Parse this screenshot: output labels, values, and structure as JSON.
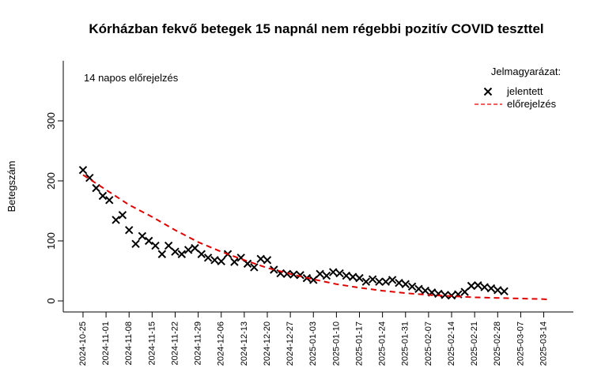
{
  "chart_data": {
    "type": "scatter-line",
    "title": "Kórházban fekvő betegek 15 napnál nem régebbi pozitív COVID teszttel",
    "annotation": "14 napos előrejelzés",
    "y_label": "Betegszám",
    "legend_title": "Jelmagyarázat:",
    "legend_position": "top-right",
    "xlim": [
      "2024-10-19",
      "2025-03-23"
    ],
    "ylim": [
      -18.4,
      400
    ],
    "yticks": [
      0,
      100,
      200,
      300
    ],
    "xticks": [
      "2024-10-25",
      "2024-11-01",
      "2024-11-08",
      "2024-11-15",
      "2024-11-22",
      "2024-11-29",
      "2024-12-06",
      "2024-12-13",
      "2024-12-20",
      "2024-12-27",
      "2025-01-03",
      "2025-01-10",
      "2025-01-17",
      "2025-01-24",
      "2025-01-31",
      "2025-02-07",
      "2025-02-14",
      "2025-02-21",
      "2025-02-28",
      "2025-03-07",
      "2025-03-14"
    ],
    "series": [
      {
        "name": "jelentett",
        "color": "#000000",
        "marker": "x",
        "x": [
          "2024-10-25",
          "2024-10-27",
          "2024-10-29",
          "2024-10-31",
          "2024-11-02",
          "2024-11-04",
          "2024-11-06",
          "2024-11-08",
          "2024-11-10",
          "2024-11-12",
          "2024-11-14",
          "2024-11-16",
          "2024-11-18",
          "2024-11-20",
          "2024-11-22",
          "2024-11-24",
          "2024-11-26",
          "2024-11-28",
          "2024-11-30",
          "2024-12-02",
          "2024-12-04",
          "2024-12-06",
          "2024-12-08",
          "2024-12-10",
          "2024-12-12",
          "2024-12-14",
          "2024-12-16",
          "2024-12-18",
          "2024-12-20",
          "2024-12-22",
          "2024-12-24",
          "2024-12-26",
          "2024-12-28",
          "2024-12-30",
          "2025-01-01",
          "2025-01-03",
          "2025-01-05",
          "2025-01-07",
          "2025-01-09",
          "2025-01-11",
          "2025-01-13",
          "2025-01-15",
          "2025-01-17",
          "2025-01-19",
          "2025-01-21",
          "2025-01-23",
          "2025-01-25",
          "2025-01-27",
          "2025-01-29",
          "2025-01-31",
          "2025-02-02",
          "2025-02-04",
          "2025-02-06",
          "2025-02-08",
          "2025-02-10",
          "2025-02-12",
          "2025-02-14",
          "2025-02-16",
          "2025-02-18",
          "2025-02-20",
          "2025-02-22",
          "2025-02-24",
          "2025-02-26",
          "2025-02-28",
          "2025-03-02"
        ],
        "values": [
          218,
          205,
          188,
          175,
          168,
          135,
          143,
          118,
          95,
          108,
          100,
          92,
          78,
          92,
          82,
          78,
          85,
          88,
          78,
          72,
          68,
          66,
          78,
          65,
          72,
          62,
          56,
          70,
          68,
          52,
          46,
          45,
          44,
          43,
          38,
          35,
          45,
          42,
          48,
          46,
          42,
          40,
          38,
          32,
          36,
          32,
          32,
          35,
          30,
          28,
          24,
          20,
          17,
          14,
          12,
          10,
          9,
          11,
          15,
          25,
          26,
          23,
          21,
          18,
          16
        ]
      },
      {
        "name": "előrejelzés",
        "color": "#e00000",
        "marker": "dashed-line",
        "x": [
          "2024-10-25",
          "2024-11-01",
          "2024-11-08",
          "2024-11-15",
          "2024-11-22",
          "2024-11-29",
          "2024-12-06",
          "2024-12-13",
          "2024-12-20",
          "2024-12-27",
          "2025-01-03",
          "2025-01-10",
          "2025-01-17",
          "2025-01-24",
          "2025-01-31",
          "2025-02-07",
          "2025-02-14",
          "2025-02-21",
          "2025-02-28",
          "2025-03-07",
          "2025-03-14",
          "2025-03-16"
        ],
        "values": [
          210,
          185,
          160,
          140,
          118,
          98,
          82,
          68,
          55,
          45,
          36,
          28,
          22,
          17,
          13,
          10,
          8,
          6,
          5,
          4,
          3,
          2
        ]
      }
    ]
  }
}
